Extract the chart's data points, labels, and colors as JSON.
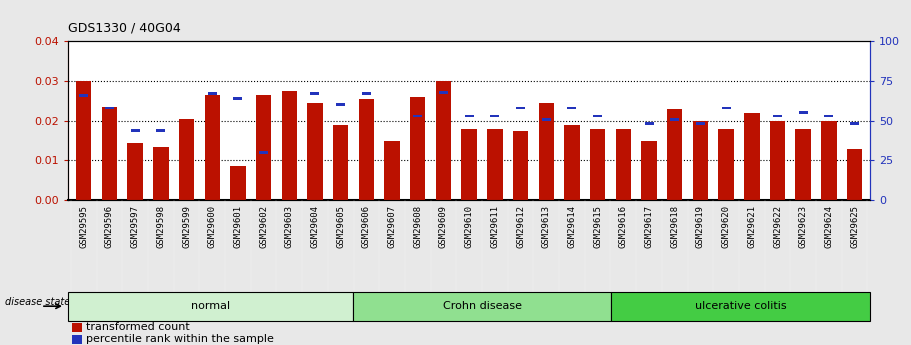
{
  "title": "GDS1330 / 40G04",
  "samples": [
    "GSM29595",
    "GSM29596",
    "GSM29597",
    "GSM29598",
    "GSM29599",
    "GSM29600",
    "GSM29601",
    "GSM29602",
    "GSM29603",
    "GSM29604",
    "GSM29605",
    "GSM29606",
    "GSM29607",
    "GSM29608",
    "GSM29609",
    "GSM29610",
    "GSM29611",
    "GSM29612",
    "GSM29613",
    "GSM29614",
    "GSM29615",
    "GSM29616",
    "GSM29617",
    "GSM29618",
    "GSM29619",
    "GSM29620",
    "GSM29621",
    "GSM29622",
    "GSM29623",
    "GSM29624",
    "GSM29625"
  ],
  "red_bars": [
    0.03,
    0.0235,
    0.0145,
    0.0135,
    0.0205,
    0.0265,
    0.0085,
    0.0265,
    0.0275,
    0.0245,
    0.019,
    0.0255,
    0.015,
    0.026,
    0.03,
    0.018,
    0.018,
    0.0175,
    0.0245,
    0.019,
    0.018,
    0.018,
    0.015,
    0.023,
    0.02,
    0.018,
    0.022,
    0.02,
    0.018,
    0.02,
    0.013
  ],
  "blue_squares_pct": [
    66,
    58,
    44,
    44,
    null,
    67,
    64,
    30,
    null,
    67,
    60,
    67,
    null,
    53,
    68,
    53,
    53,
    58,
    51,
    58,
    53,
    null,
    48,
    51,
    48,
    58,
    null,
    53,
    55,
    53,
    48
  ],
  "ylim_left": [
    0,
    0.04
  ],
  "ylim_right": [
    0,
    100
  ],
  "yticks_left": [
    0,
    0.01,
    0.02,
    0.03,
    0.04
  ],
  "yticks_right": [
    0,
    25,
    50,
    75,
    100
  ],
  "bar_color": "#bb1100",
  "square_color": "#2233bb",
  "bg_color": "#e8e8e8",
  "plot_bg": "#ffffff",
  "label_fontsize": 6.5,
  "title_fontsize": 9,
  "group_normal_color": "#d0f0d0",
  "group_crohn_color": "#90e090",
  "group_uc_color": "#44cc44",
  "xtick_bg": "#cccccc",
  "group_label_bg": "#cccccc"
}
